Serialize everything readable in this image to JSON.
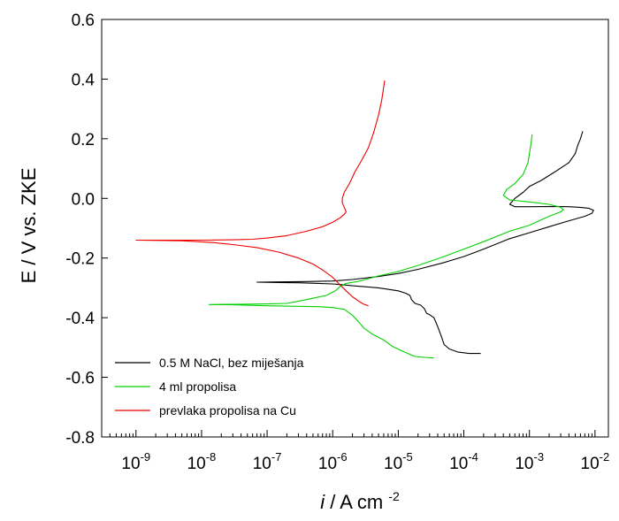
{
  "chart_data": {
    "type": "line",
    "xlabel_var": "i",
    "xlabel_unit": " / A cm",
    "xlabel_sup": "-2",
    "ylabel": "E / V  vs. ZKE",
    "x_scale": "log",
    "xlim": [
      3e-10,
      0.016
    ],
    "ylim": [
      -0.8,
      0.6
    ],
    "x_ticks": [
      1e-09,
      1e-08,
      1e-07,
      1e-06,
      1e-05,
      0.0001,
      0.001,
      0.01
    ],
    "x_tick_labels": [
      {
        "base": "10",
        "exp": "-9"
      },
      {
        "base": "10",
        "exp": "-8"
      },
      {
        "base": "10",
        "exp": "-7"
      },
      {
        "base": "10",
        "exp": "-6"
      },
      {
        "base": "10",
        "exp": "-5"
      },
      {
        "base": "10",
        "exp": "-4"
      },
      {
        "base": "10",
        "exp": "-3"
      },
      {
        "base": "10",
        "exp": "-2"
      }
    ],
    "y_ticks": [
      -0.8,
      -0.6,
      -0.4,
      -0.2,
      0.0,
      0.2,
      0.4,
      0.6
    ],
    "y_tick_labels": [
      "-0.8",
      "-0.6",
      "-0.4",
      "-0.2",
      "0.0",
      "0.2",
      "0.4",
      "0.6"
    ],
    "grid": false,
    "legend_position": "bottom-left",
    "series": [
      {
        "name": "0.5 M NaCl, bez miješanja",
        "color": "#000000",
        "points": [
          [
            0.00018,
            -0.52
          ],
          [
            0.00012,
            -0.52
          ],
          [
            8e-05,
            -0.515
          ],
          [
            6e-05,
            -0.505
          ],
          [
            5e-05,
            -0.49
          ],
          [
            4.5e-05,
            -0.46
          ],
          [
            4e-05,
            -0.43
          ],
          [
            3.5e-05,
            -0.4
          ],
          [
            3e-05,
            -0.39
          ],
          [
            2.7e-05,
            -0.385
          ],
          [
            2.5e-05,
            -0.37
          ],
          [
            2.2e-05,
            -0.358
          ],
          [
            1.8e-05,
            -0.352
          ],
          [
            1.6e-05,
            -0.34
          ],
          [
            1.5e-05,
            -0.325
          ],
          [
            1.3e-05,
            -0.318
          ],
          [
            1e-05,
            -0.31
          ],
          [
            7e-06,
            -0.305
          ],
          [
            5e-06,
            -0.3
          ],
          [
            3e-06,
            -0.296
          ],
          [
            2e-06,
            -0.293
          ],
          [
            1.5e-06,
            -0.29
          ],
          [
            1e-06,
            -0.287
          ],
          [
            6e-07,
            -0.285
          ],
          [
            3e-07,
            -0.283
          ],
          [
            1.5e-07,
            -0.282
          ],
          [
            7e-08,
            -0.281
          ],
          [
            1.5e-07,
            -0.28
          ],
          [
            4e-07,
            -0.279
          ],
          [
            1e-06,
            -0.277
          ],
          [
            2e-06,
            -0.272
          ],
          [
            5e-06,
            -0.262
          ],
          [
            1e-05,
            -0.252
          ],
          [
            2e-05,
            -0.238
          ],
          [
            5e-05,
            -0.215
          ],
          [
            0.0001,
            -0.195
          ],
          [
            0.0002,
            -0.17
          ],
          [
            0.0005,
            -0.135
          ],
          [
            0.001,
            -0.115
          ],
          [
            0.002,
            -0.095
          ],
          [
            0.004,
            -0.075
          ],
          [
            0.007,
            -0.06
          ],
          [
            0.009,
            -0.05
          ],
          [
            0.0095,
            -0.04
          ],
          [
            0.008,
            -0.033
          ],
          [
            0.006,
            -0.03
          ],
          [
            0.004,
            -0.028
          ],
          [
            0.0025,
            -0.027
          ],
          [
            0.001,
            -0.028
          ],
          [
            0.0006,
            -0.028
          ],
          [
            0.0005,
            -0.02
          ],
          [
            0.0006,
            0.0
          ],
          [
            0.0008,
            0.02
          ],
          [
            0.001,
            0.04
          ],
          [
            0.0015,
            0.06
          ],
          [
            0.0025,
            0.09
          ],
          [
            0.004,
            0.12
          ],
          [
            0.005,
            0.15
          ],
          [
            0.0055,
            0.18
          ],
          [
            0.006,
            0.2
          ],
          [
            0.0065,
            0.225
          ]
        ]
      },
      {
        "name": "4 ml propolisa",
        "color": "#00d000",
        "points": [
          [
            3.5e-05,
            -0.535
          ],
          [
            2.5e-05,
            -0.533
          ],
          [
            1.8e-05,
            -0.53
          ],
          [
            1.4e-05,
            -0.52
          ],
          [
            1.1e-05,
            -0.51
          ],
          [
            8e-06,
            -0.495
          ],
          [
            6e-06,
            -0.475
          ],
          [
            4e-06,
            -0.455
          ],
          [
            3e-06,
            -0.435
          ],
          [
            2.5e-06,
            -0.415
          ],
          [
            2e-06,
            -0.392
          ],
          [
            1.5e-06,
            -0.372
          ],
          [
            1e-06,
            -0.366
          ],
          [
            6e-07,
            -0.363
          ],
          [
            3e-07,
            -0.362
          ],
          [
            1e-07,
            -0.36
          ],
          [
            3e-08,
            -0.357
          ],
          [
            1.3e-08,
            -0.356
          ],
          [
            3e-08,
            -0.355
          ],
          [
            1e-07,
            -0.354
          ],
          [
            2e-07,
            -0.352
          ],
          [
            3e-07,
            -0.345
          ],
          [
            5e-07,
            -0.335
          ],
          [
            8e-07,
            -0.325
          ],
          [
            1.1e-06,
            -0.31
          ],
          [
            1.3e-06,
            -0.295
          ],
          [
            1.6e-06,
            -0.285
          ],
          [
            2.5e-06,
            -0.278
          ],
          [
            5e-06,
            -0.26
          ],
          [
            1e-05,
            -0.245
          ],
          [
            2e-05,
            -0.225
          ],
          [
            5e-05,
            -0.195
          ],
          [
            0.0001,
            -0.17
          ],
          [
            0.0002,
            -0.145
          ],
          [
            0.0005,
            -0.11
          ],
          [
            0.001,
            -0.09
          ],
          [
            0.002,
            -0.06
          ],
          [
            0.003,
            -0.045
          ],
          [
            0.0033,
            -0.038
          ],
          [
            0.003,
            -0.03
          ],
          [
            0.002,
            -0.02
          ],
          [
            0.001,
            -0.012
          ],
          [
            0.0005,
            -0.005
          ],
          [
            0.0004,
            0.01
          ],
          [
            0.00045,
            0.03
          ],
          [
            0.0006,
            0.05
          ],
          [
            0.0008,
            0.08
          ],
          [
            0.00095,
            0.12
          ],
          [
            0.001,
            0.15
          ],
          [
            0.00105,
            0.18
          ],
          [
            0.0011,
            0.215
          ]
        ]
      },
      {
        "name": "prevlaka propolisa na Cu",
        "color": "#ee0000",
        "points": [
          [
            3.5e-06,
            -0.36
          ],
          [
            3e-06,
            -0.355
          ],
          [
            2.5e-06,
            -0.345
          ],
          [
            2e-06,
            -0.33
          ],
          [
            1.6e-06,
            -0.31
          ],
          [
            1.3e-06,
            -0.29
          ],
          [
            1e-06,
            -0.265
          ],
          [
            7e-07,
            -0.24
          ],
          [
            5e-07,
            -0.22
          ],
          [
            3e-07,
            -0.2
          ],
          [
            1.5e-07,
            -0.18
          ],
          [
            7e-08,
            -0.165
          ],
          [
            3e-08,
            -0.155
          ],
          [
            1.5e-08,
            -0.148
          ],
          [
            5e-09,
            -0.142
          ],
          [
            1e-09,
            -0.14
          ],
          [
            3e-09,
            -0.14
          ],
          [
            1e-08,
            -0.14
          ],
          [
            3e-08,
            -0.139
          ],
          [
            6e-08,
            -0.137
          ],
          [
            1e-07,
            -0.133
          ],
          [
            2e-07,
            -0.125
          ],
          [
            4e-07,
            -0.11
          ],
          [
            7e-07,
            -0.095
          ],
          [
            1e-06,
            -0.08
          ],
          [
            1.3e-06,
            -0.065
          ],
          [
            1.5e-06,
            -0.053
          ],
          [
            1.6e-06,
            -0.045
          ],
          [
            1.5e-06,
            -0.03
          ],
          [
            1.4e-06,
            -0.015
          ],
          [
            1.4e-06,
            0.0
          ],
          [
            1.5e-06,
            0.02
          ],
          [
            1.8e-06,
            0.05
          ],
          [
            2.2e-06,
            0.09
          ],
          [
            2.8e-06,
            0.13
          ],
          [
            3.5e-06,
            0.17
          ],
          [
            4.2e-06,
            0.22
          ],
          [
            5e-06,
            0.28
          ],
          [
            5.6e-06,
            0.33
          ],
          [
            6.2e-06,
            0.395
          ]
        ]
      }
    ]
  }
}
